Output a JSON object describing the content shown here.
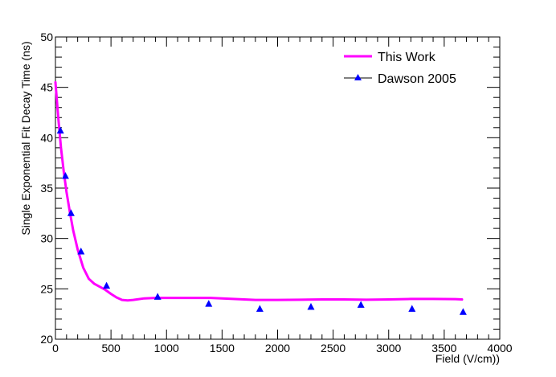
{
  "chart_data": {
    "type": "line",
    "xlabel": "Field (V/cm))",
    "ylabel": "Single Exponential Fit Decay Time (ns)",
    "xlim": [
      0,
      4000
    ],
    "ylim": [
      20,
      50
    ],
    "x_ticks": [
      "0",
      "500",
      "1000",
      "1500",
      "2000",
      "2500",
      "3000",
      "3500",
      "4000"
    ],
    "y_ticks": [
      "20",
      "25",
      "30",
      "35",
      "40",
      "45",
      "50"
    ],
    "legend_position": "top-right",
    "series": [
      {
        "name": "This Work",
        "style": "line",
        "color": "#ff00ff",
        "x": [
          0,
          25,
          50,
          75,
          100,
          130,
          160,
          200,
          250,
          300,
          350,
          400,
          450,
          500,
          550,
          600,
          650,
          700,
          800,
          900,
          1000,
          1200,
          1400,
          1600,
          1800,
          2000,
          2200,
          2400,
          2600,
          2800,
          3000,
          3200,
          3400,
          3600,
          3660
        ],
        "y": [
          45.5,
          42.0,
          39.0,
          36.6,
          34.6,
          32.6,
          30.8,
          28.9,
          27.1,
          26.0,
          25.5,
          25.2,
          24.9,
          24.5,
          24.15,
          23.9,
          23.85,
          23.9,
          24.05,
          24.1,
          24.1,
          24.1,
          24.1,
          24.0,
          23.9,
          23.9,
          23.92,
          23.95,
          23.95,
          23.92,
          23.95,
          24.0,
          24.0,
          23.98,
          23.95
        ]
      },
      {
        "name": "Dawson 2005",
        "style": "marker",
        "marker": "triangle-up",
        "color": "#0000ff",
        "x": [
          45,
          90,
          140,
          230,
          460,
          920,
          1380,
          1840,
          2300,
          2750,
          3210,
          3670
        ],
        "y": [
          40.7,
          36.2,
          32.5,
          28.7,
          25.3,
          24.2,
          23.5,
          23.0,
          23.2,
          23.4,
          23.0,
          22.7
        ]
      }
    ]
  }
}
